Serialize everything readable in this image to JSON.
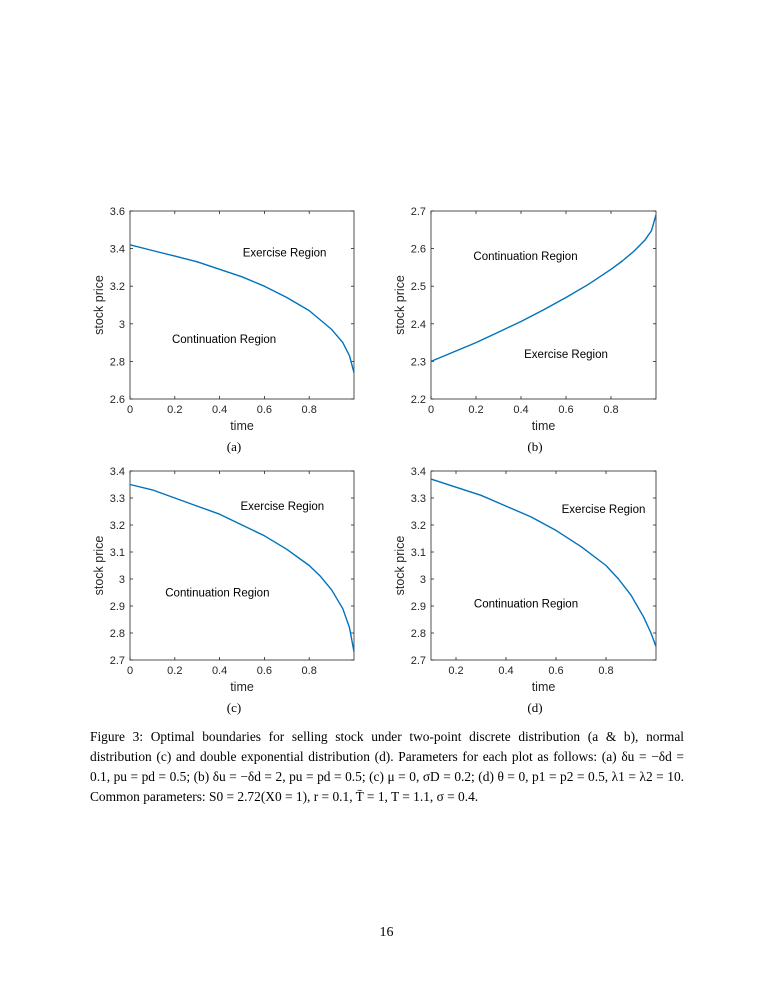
{
  "chart_data": [
    {
      "type": "line",
      "panel_label": "(a)",
      "xlabel": "time",
      "ylabel": "stock price",
      "xlim": [
        0,
        1
      ],
      "ylim": [
        2.6,
        3.6
      ],
      "xticks": [
        0,
        0.2,
        0.4,
        0.6,
        0.8
      ],
      "xtick_labels": [
        "0",
        "0.2",
        "0.4",
        "0.6",
        "0.8"
      ],
      "yticks": [
        2.6,
        2.8,
        3.0,
        3.2,
        3.4,
        3.6
      ],
      "ytick_labels": [
        "2.6",
        "2.8",
        "3",
        "3.2",
        "3.4",
        "3.6"
      ],
      "series": [
        {
          "name": "optimal boundary",
          "color": "#0072BD",
          "x": [
            0,
            0.1,
            0.2,
            0.3,
            0.4,
            0.5,
            0.6,
            0.7,
            0.8,
            0.85,
            0.9,
            0.95,
            0.98,
            1.0
          ],
          "y": [
            3.42,
            3.39,
            3.36,
            3.33,
            3.29,
            3.25,
            3.2,
            3.14,
            3.07,
            3.02,
            2.97,
            2.9,
            2.83,
            2.74
          ]
        }
      ],
      "annotations": [
        {
          "text": "Exercise Region",
          "x": 0.69,
          "y": 3.38
        },
        {
          "text": "Continuation Region",
          "x": 0.42,
          "y": 2.92
        }
      ]
    },
    {
      "type": "line",
      "panel_label": "(b)",
      "xlabel": "time",
      "ylabel": "stock price",
      "xlim": [
        0,
        1
      ],
      "ylim": [
        2.2,
        2.7
      ],
      "xticks": [
        0,
        0.2,
        0.4,
        0.6,
        0.8
      ],
      "xtick_labels": [
        "0",
        "0.2",
        "0.4",
        "0.6",
        "0.8"
      ],
      "yticks": [
        2.2,
        2.3,
        2.4,
        2.5,
        2.6,
        2.7
      ],
      "ytick_labels": [
        "2.2",
        "2.3",
        "2.4",
        "2.5",
        "2.6",
        "2.7"
      ],
      "series": [
        {
          "name": "optimal boundary",
          "color": "#0072BD",
          "x": [
            0,
            0.1,
            0.2,
            0.3,
            0.4,
            0.5,
            0.6,
            0.7,
            0.8,
            0.85,
            0.9,
            0.95,
            0.98,
            1.0
          ],
          "y": [
            2.3,
            2.325,
            2.35,
            2.378,
            2.406,
            2.437,
            2.47,
            2.505,
            2.545,
            2.567,
            2.592,
            2.622,
            2.648,
            2.69
          ]
        }
      ],
      "annotations": [
        {
          "text": "Continuation Region",
          "x": 0.42,
          "y": 2.58
        },
        {
          "text": "Exercise Region",
          "x": 0.6,
          "y": 2.32
        }
      ]
    },
    {
      "type": "line",
      "panel_label": "(c)",
      "xlabel": "time",
      "ylabel": "stock price",
      "xlim": [
        0,
        1
      ],
      "ylim": [
        2.7,
        3.4
      ],
      "xticks": [
        0,
        0.2,
        0.4,
        0.6,
        0.8
      ],
      "xtick_labels": [
        "0",
        "0.2",
        "0.4",
        "0.6",
        "0.8"
      ],
      "yticks": [
        2.7,
        2.8,
        2.9,
        3.0,
        3.1,
        3.2,
        3.3,
        3.4
      ],
      "ytick_labels": [
        "2.7",
        "2.8",
        "2.9",
        "3",
        "3.1",
        "3.2",
        "3.3",
        "3.4"
      ],
      "series": [
        {
          "name": "optimal boundary",
          "color": "#0072BD",
          "x": [
            0,
            0.1,
            0.2,
            0.3,
            0.4,
            0.5,
            0.6,
            0.7,
            0.8,
            0.85,
            0.9,
            0.95,
            0.98,
            1.0
          ],
          "y": [
            3.35,
            3.33,
            3.3,
            3.27,
            3.24,
            3.2,
            3.16,
            3.11,
            3.05,
            3.01,
            2.96,
            2.89,
            2.82,
            2.73
          ]
        }
      ],
      "annotations": [
        {
          "text": "Exercise Region",
          "x": 0.68,
          "y": 3.27
        },
        {
          "text": "Continuation Region",
          "x": 0.39,
          "y": 2.95
        }
      ]
    },
    {
      "type": "line",
      "panel_label": "(d)",
      "xlabel": "time",
      "ylabel": "stock price",
      "xlim": [
        0.1,
        1.0
      ],
      "ylim": [
        2.7,
        3.4
      ],
      "xticks": [
        0.2,
        0.4,
        0.6,
        0.8
      ],
      "xtick_labels": [
        "0.2",
        "0.4",
        "0.6",
        "0.8"
      ],
      "yticks": [
        2.7,
        2.8,
        2.9,
        3.0,
        3.1,
        3.2,
        3.3,
        3.4
      ],
      "ytick_labels": [
        "2.7",
        "2.8",
        "2.9",
        "3",
        "3.1",
        "3.2",
        "3.3",
        "3.4"
      ],
      "series": [
        {
          "name": "optimal boundary",
          "color": "#0072BD",
          "x": [
            0.1,
            0.2,
            0.3,
            0.4,
            0.5,
            0.6,
            0.7,
            0.8,
            0.85,
            0.9,
            0.95,
            0.98,
            1.0
          ],
          "y": [
            3.37,
            3.34,
            3.31,
            3.27,
            3.23,
            3.18,
            3.12,
            3.05,
            3.0,
            2.94,
            2.86,
            2.8,
            2.75
          ]
        }
      ],
      "annotations": [
        {
          "text": "Exercise Region",
          "x": 0.79,
          "y": 3.26
        },
        {
          "text": "Continuation Region",
          "x": 0.48,
          "y": 2.91
        }
      ]
    }
  ],
  "caption": {
    "lead": "Figure 3: Optimal boundaries for selling stock under two-point discrete distribution (a & b), normal distribution (c) and double exponential distribution (d). Parameters for each plot as follows: (a)",
    "line2": "δu = −δd = 0.1, pu = pd = 0.5; (b) δu = −δd = 2, pu = pd = 0.5; (c) μ = 0, σD = 0.2; (d) θ = 0, p1 =",
    "line3": "p2 = 0.5, λ1 = λ2 = 10. Common parameters: S0 = 2.72(X0 = 1), r = 0.1, T̄ = 1, T = 1.1, σ = 0.4."
  },
  "page_number": "16"
}
